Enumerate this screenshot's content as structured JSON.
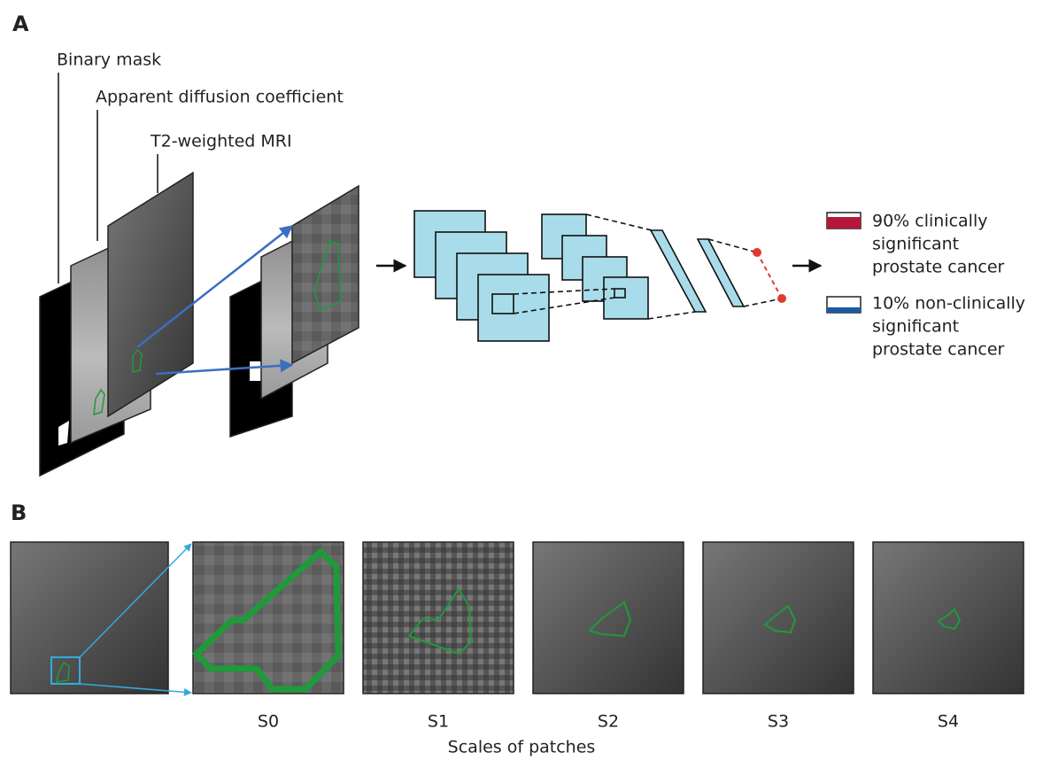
{
  "panel_a": {
    "label": "A",
    "layers": [
      "Binary mask",
      "Apparent diffusion coefficient",
      "T2-weighted MRI"
    ],
    "outputs": [
      [
        "90% clinically",
        "significant",
        "prostate cancer"
      ],
      [
        "10% non-clinically",
        "significant",
        "prostate cancer"
      ]
    ]
  },
  "panel_b": {
    "label": "B",
    "scales": [
      "S0",
      "S1",
      "S2",
      "S3",
      "S4"
    ],
    "caption": "Scales of patches"
  }
}
